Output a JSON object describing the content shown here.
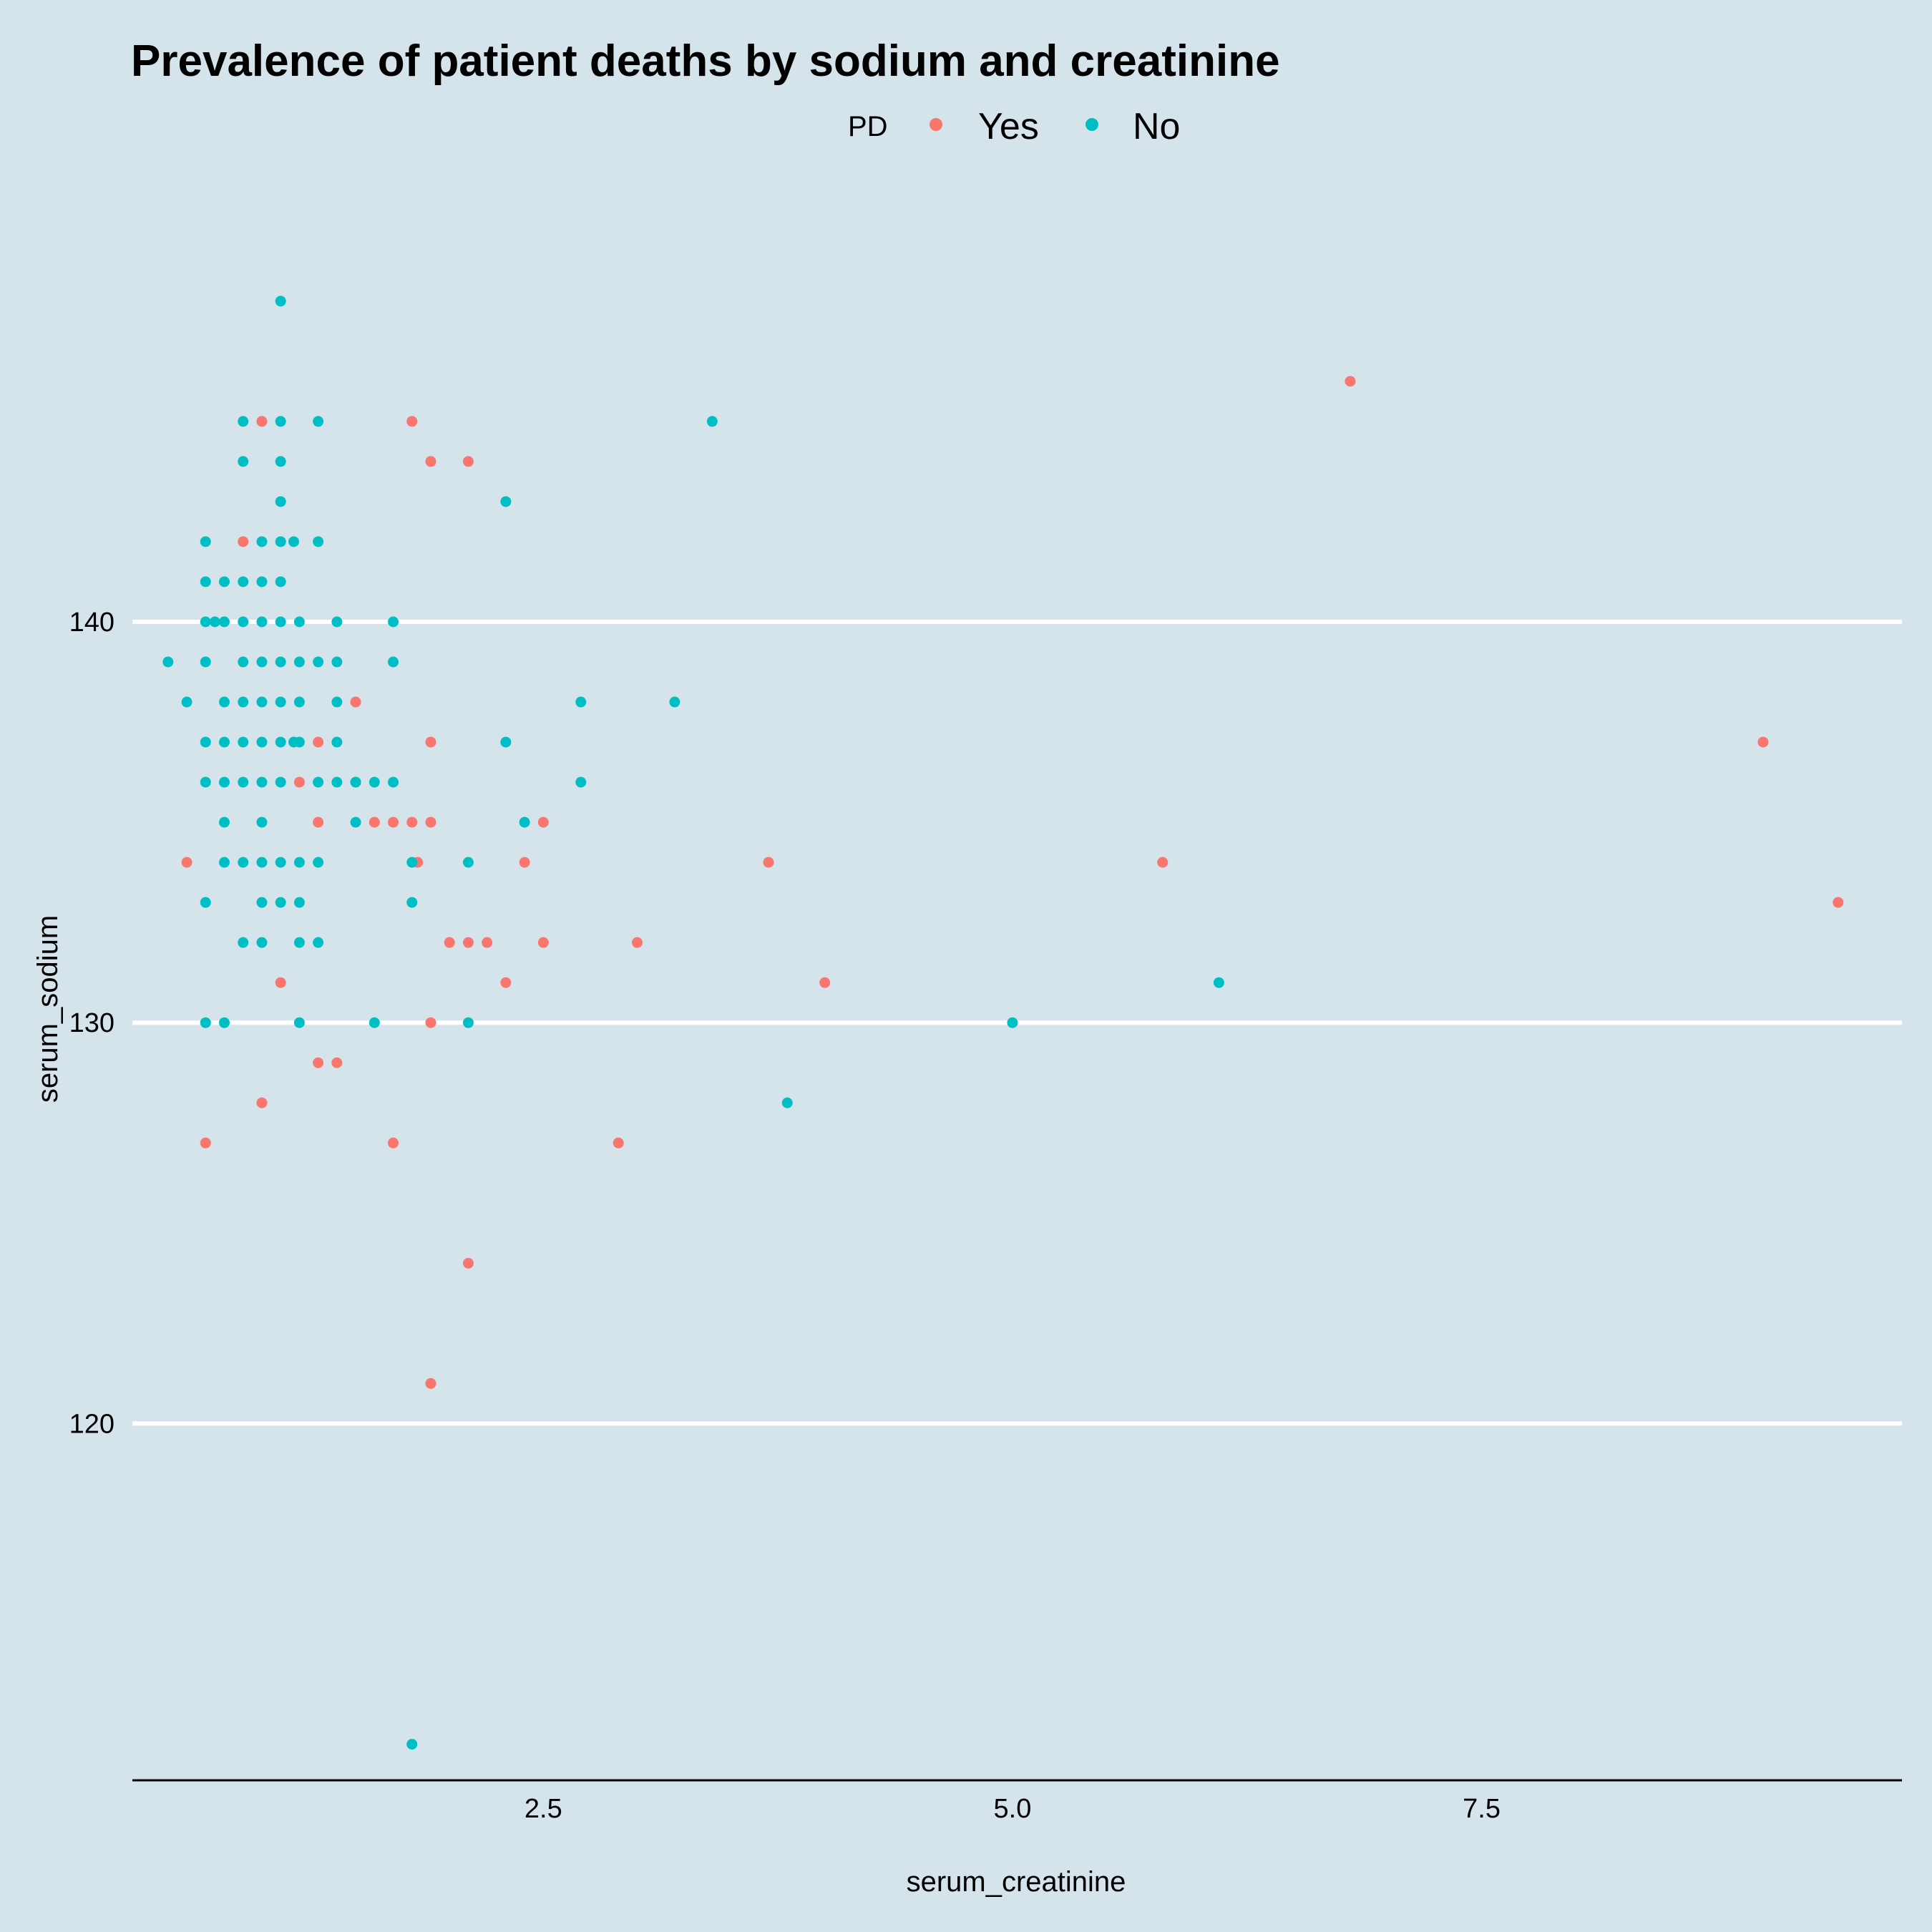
{
  "chart_data": {
    "type": "scatter",
    "title": "Prevalence of patient deaths by sodium and creatinine",
    "xlabel": "serum_creatinine",
    "ylabel": "serum_sodium",
    "xlim": [
      0.31,
      9.74
    ],
    "ylim": [
      111.1,
      149.8
    ],
    "x_ticks": [
      2.5,
      5.0,
      7.5
    ],
    "x_tick_labels": [
      "2.5",
      "5.0",
      "7.5"
    ],
    "y_ticks": [
      120,
      130,
      140
    ],
    "y_tick_labels": [
      "120",
      "130",
      "140"
    ],
    "grid": "horizontal major lines only",
    "legend": {
      "title": "PD",
      "position": "top",
      "entries": [
        {
          "label": "Yes",
          "color": "#F8766D"
        },
        {
          "label": "No",
          "color": "#00BFC4"
        }
      ]
    },
    "series": [
      {
        "name": "Yes",
        "color": "#F8766D",
        "points": [
          [
            0.9,
            142
          ],
          [
            1.0,
            145
          ],
          [
            0.6,
            134
          ],
          [
            0.7,
            127
          ],
          [
            1.0,
            128
          ],
          [
            1.1,
            131
          ],
          [
            1.2,
            136
          ],
          [
            1.3,
            137
          ],
          [
            1.3,
            135
          ],
          [
            1.3,
            129
          ],
          [
            1.4,
            129
          ],
          [
            1.5,
            138
          ],
          [
            1.5,
            136
          ],
          [
            1.6,
            135
          ],
          [
            1.7,
            135
          ],
          [
            1.7,
            127
          ],
          [
            1.8,
            145
          ],
          [
            1.8,
            135
          ],
          [
            1.83,
            134
          ],
          [
            1.9,
            144
          ],
          [
            1.9,
            137
          ],
          [
            1.9,
            135
          ],
          [
            1.9,
            130
          ],
          [
            1.9,
            121
          ],
          [
            2.0,
            132
          ],
          [
            2.1,
            144
          ],
          [
            2.1,
            132
          ],
          [
            2.1,
            124
          ],
          [
            2.2,
            132
          ],
          [
            2.3,
            131
          ],
          [
            2.4,
            134
          ],
          [
            2.5,
            135
          ],
          [
            2.5,
            132
          ],
          [
            2.9,
            127
          ],
          [
            3.0,
            132
          ],
          [
            3.7,
            134
          ],
          [
            4.0,
            131
          ],
          [
            5.8,
            134
          ],
          [
            6.8,
            146
          ],
          [
            9.0,
            137
          ],
          [
            9.4,
            133
          ]
        ]
      },
      {
        "name": "No",
        "color": "#00BFC4",
        "points": [
          [
            0.5,
            139
          ],
          [
            0.6,
            138
          ],
          [
            0.7,
            142
          ],
          [
            0.7,
            141
          ],
          [
            0.7,
            140
          ],
          [
            0.7,
            139
          ],
          [
            0.7,
            137
          ],
          [
            0.7,
            136
          ],
          [
            0.7,
            133
          ],
          [
            0.7,
            130
          ],
          [
            0.75,
            140
          ],
          [
            0.8,
            141
          ],
          [
            0.8,
            140
          ],
          [
            0.8,
            138
          ],
          [
            0.8,
            137
          ],
          [
            0.8,
            136
          ],
          [
            0.8,
            135
          ],
          [
            0.8,
            134
          ],
          [
            0.8,
            130
          ],
          [
            0.9,
            145
          ],
          [
            0.9,
            144
          ],
          [
            0.9,
            141
          ],
          [
            0.9,
            140
          ],
          [
            0.9,
            139
          ],
          [
            0.9,
            138
          ],
          [
            0.9,
            137
          ],
          [
            0.9,
            136
          ],
          [
            0.9,
            134
          ],
          [
            0.9,
            132
          ],
          [
            1.0,
            142
          ],
          [
            1.0,
            141
          ],
          [
            1.0,
            140
          ],
          [
            1.0,
            139
          ],
          [
            1.0,
            138
          ],
          [
            1.0,
            137
          ],
          [
            1.0,
            136
          ],
          [
            1.0,
            135
          ],
          [
            1.0,
            134
          ],
          [
            1.0,
            133
          ],
          [
            1.0,
            132
          ],
          [
            1.1,
            148
          ],
          [
            1.1,
            145
          ],
          [
            1.1,
            144
          ],
          [
            1.1,
            143
          ],
          [
            1.1,
            142
          ],
          [
            1.1,
            141
          ],
          [
            1.1,
            140
          ],
          [
            1.1,
            139
          ],
          [
            1.1,
            138
          ],
          [
            1.1,
            137
          ],
          [
            1.1,
            136
          ],
          [
            1.1,
            134
          ],
          [
            1.1,
            133
          ],
          [
            1.17,
            142
          ],
          [
            1.17,
            137
          ],
          [
            1.2,
            140
          ],
          [
            1.2,
            139
          ],
          [
            1.2,
            138
          ],
          [
            1.2,
            137
          ],
          [
            1.2,
            134
          ],
          [
            1.2,
            133
          ],
          [
            1.2,
            132
          ],
          [
            1.2,
            130
          ],
          [
            1.3,
            145
          ],
          [
            1.3,
            142
          ],
          [
            1.3,
            139
          ],
          [
            1.3,
            136
          ],
          [
            1.3,
            134
          ],
          [
            1.3,
            132
          ],
          [
            1.4,
            140
          ],
          [
            1.4,
            139
          ],
          [
            1.4,
            138
          ],
          [
            1.4,
            137
          ],
          [
            1.4,
            136
          ],
          [
            1.5,
            136
          ],
          [
            1.5,
            135
          ],
          [
            1.6,
            136
          ],
          [
            1.6,
            130
          ],
          [
            1.7,
            140
          ],
          [
            1.7,
            139
          ],
          [
            1.7,
            136
          ],
          [
            1.8,
            134
          ],
          [
            1.8,
            133
          ],
          [
            1.8,
            112
          ],
          [
            2.1,
            134
          ],
          [
            2.1,
            130
          ],
          [
            2.3,
            143
          ],
          [
            2.3,
            137
          ],
          [
            2.4,
            135
          ],
          [
            2.7,
            138
          ],
          [
            2.7,
            136
          ],
          [
            3.2,
            138
          ],
          [
            3.4,
            145
          ],
          [
            3.8,
            128
          ],
          [
            5.0,
            130
          ],
          [
            6.1,
            131
          ]
        ]
      }
    ]
  }
}
